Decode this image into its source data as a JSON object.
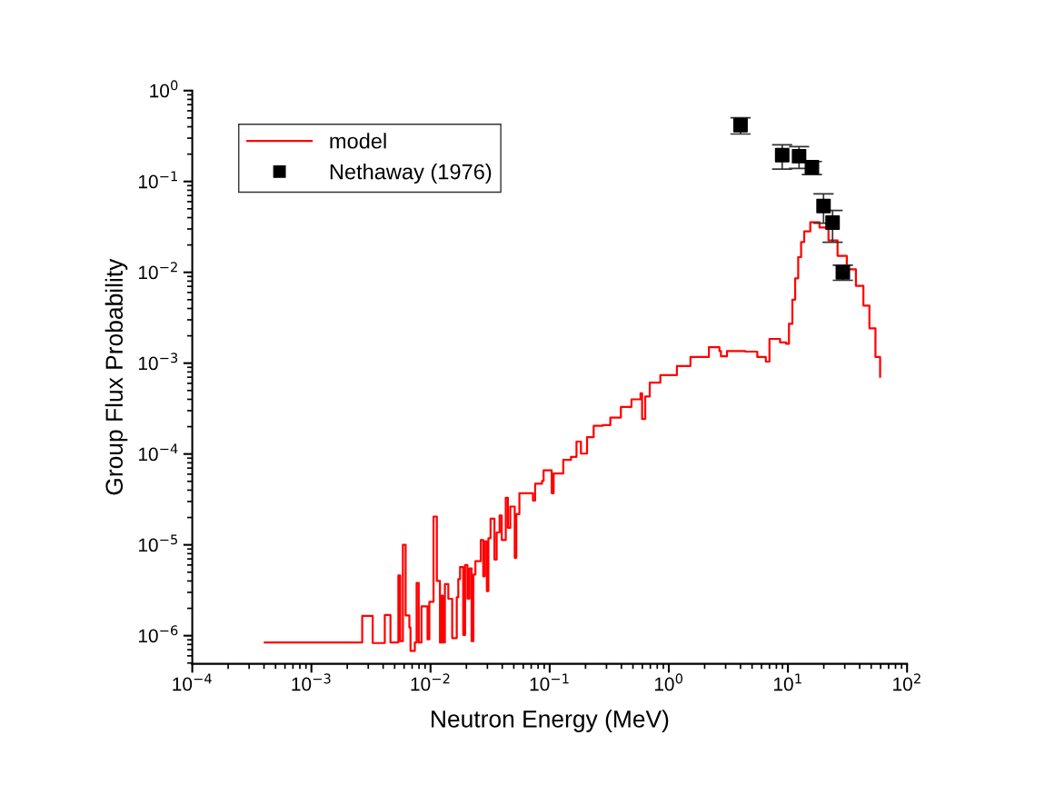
{
  "chart_data": {
    "type": "step",
    "xlabel": "Neutron Energy (MeV)",
    "ylabel": "Group Flux Probability",
    "log": "xy",
    "grid": false,
    "legend": "top left",
    "xlim": [
      0.0001,
      100
    ],
    "ylim": [
      4.9e-07,
      1
    ],
    "xticks": [
      {
        "value": 0.0001,
        "label": "10$^{−4}$"
      },
      {
        "value": 0.001,
        "label": "10$^{−3}$"
      },
      {
        "value": 0.01,
        "label": "10$^{−2}$"
      },
      {
        "value": 0.1,
        "label": "10$^{−1}$"
      },
      {
        "value": 1,
        "label": "10$^{0}$"
      },
      {
        "value": 10,
        "label": "10$^{1}$"
      },
      {
        "value": 100,
        "label": "10$^{2}$"
      }
    ],
    "yticks": [
      {
        "value": 1e-06,
        "label": "10$^{−6}$"
      },
      {
        "value": 1e-05,
        "label": "10$^{−5}$"
      },
      {
        "value": 0.0001,
        "label": "10$^{−4}$"
      },
      {
        "value": 0.001,
        "label": "10$^{−3}$"
      },
      {
        "value": 0.01,
        "label": "10$^{−2}$"
      },
      {
        "value": 0.1,
        "label": "10$^{−1}$"
      },
      {
        "value": 1,
        "label": "10$^{0}$"
      }
    ],
    "series": [
      {
        "name": "model",
        "color": "#ff0000",
        "marker": "none",
        "line_style": "solid",
        "x": [
          0.000406,
          0.00267,
          0.00327,
          0.00413,
          0.00461,
          0.00537,
          0.00557,
          0.00586,
          0.00618,
          0.00664,
          0.00679,
          0.00738,
          0.00764,
          0.00796,
          0.00839,
          0.00944,
          0.00977,
          0.0106,
          0.0113,
          0.012,
          0.0124,
          0.0127,
          0.0132,
          0.0141,
          0.0152,
          0.0166,
          0.0171,
          0.0177,
          0.0188,
          0.0195,
          0.0204,
          0.0212,
          0.0221,
          0.0229,
          0.0238,
          0.0264,
          0.0277,
          0.0285,
          0.0297,
          0.0306,
          0.0319,
          0.0344,
          0.0359,
          0.038,
          0.0396,
          0.0428,
          0.0446,
          0.0467,
          0.0509,
          0.0525,
          0.0557,
          0.0724,
          0.0755,
          0.0863,
          0.0889,
          0.104,
          0.108,
          0.13,
          0.151,
          0.168,
          0.183,
          0.206,
          0.234,
          0.279,
          0.323,
          0.396,
          0.486,
          0.579,
          0.597,
          0.634,
          0.692,
          0.849,
          1.17,
          1.52,
          2.17,
          2.66,
          2.74,
          3.08,
          4.38,
          5.53,
          6.52,
          7.0,
          8.59,
          9.66,
          10.2,
          10.9,
          11.5,
          12.2,
          12.9,
          13.7,
          15.4,
          18.4,
          21.9,
          26.1,
          31.2,
          37.2,
          43.0,
          48.3,
          54.3,
          59.4
        ],
        "values": [
          8.4e-07,
          1.65e-06,
          8.3e-07,
          1.69e-06,
          8.4e-07,
          4.6e-06,
          8.7e-07,
          1e-05,
          1.67e-06,
          1.23e-06,
          6.8e-07,
          8.4e-07,
          3.8e-06,
          8.4e-07,
          2.1e-06,
          9.1e-07,
          2.36e-06,
          2.05e-05,
          4e-06,
          8.4e-07,
          2.75e-06,
          8.4e-07,
          3.7e-06,
          2.55e-06,
          9.4e-07,
          2.65e-06,
          4.2e-06,
          5.7e-06,
          1.02e-06,
          6e-06,
          2.55e-06,
          5.5e-06,
          8.7e-07,
          4.7e-06,
          6.6e-06,
          1.13e-05,
          4.5e-06,
          1.09e-05,
          3.1e-06,
          1.18e-05,
          1.94e-05,
          6.9e-06,
          1.37e-05,
          2.1e-05,
          1.13e-05,
          3.3e-05,
          1.54e-05,
          2.64e-05,
          7.2e-06,
          2.18e-05,
          3.7e-05,
          3.07e-05,
          4.7e-05,
          5.06e-05,
          6.6e-05,
          3.7e-05,
          6.1e-05,
          8.6e-05,
          9.3e-05,
          0.000137,
          0.000101,
          0.000153,
          0.000204,
          0.000208,
          0.000252,
          0.00033,
          0.0004,
          0.000466,
          0.000243,
          0.00043,
          0.00061,
          0.00074,
          0.00093,
          0.00117,
          0.0015,
          0.00136,
          0.00119,
          0.00136,
          0.00134,
          0.00117,
          0.00104,
          0.00185,
          0.00169,
          0.00163,
          0.00271,
          0.005,
          0.0086,
          0.0147,
          0.0215,
          0.0282,
          0.0355,
          0.0311,
          0.0224,
          0.0152,
          0.0108,
          0.0071,
          0.0043,
          0.00242,
          0.00117,
          0.00071
        ]
      },
      {
        "name": "Nethaway (1976)",
        "type": "scatter",
        "color": "#000000",
        "marker": "square",
        "x": [
          4.0,
          8.95,
          12.4,
          15.9,
          19.9,
          23.7,
          28.9
        ],
        "values": [
          0.416,
          0.195,
          0.19,
          0.1435,
          0.0538,
          0.0353,
          0.01
        ],
        "errors": [
          [
            0.333,
            0.502
          ],
          [
            0.137,
            0.253
          ],
          [
            0.139,
            0.242
          ],
          [
            0.119,
            0.166
          ],
          [
            0.0348,
            0.0731
          ],
          [
            0.0214,
            0.048
          ],
          [
            0.00817,
            0.012
          ]
        ]
      }
    ]
  }
}
